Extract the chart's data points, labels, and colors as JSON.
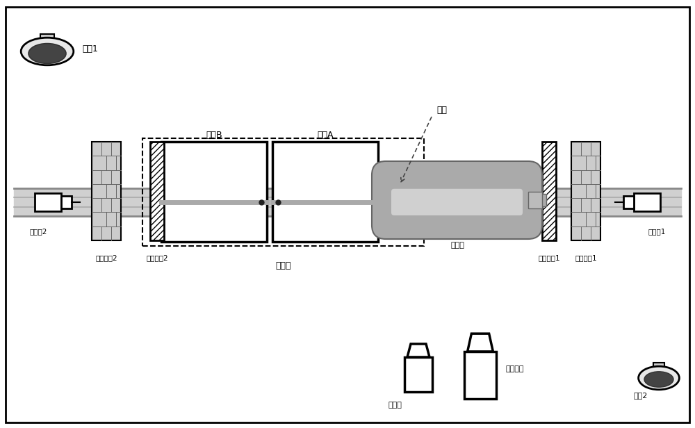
{
  "bg_color": "#ffffff",
  "border_color": "#000000",
  "labels": {
    "monitor1": "监控1",
    "monitor2": "监控2",
    "camera1": "摄像机1",
    "camera2": "摄像机2",
    "tank_A": "油池A",
    "tank_B": "油池B",
    "hydrogen": "储氢瓶",
    "brake2": "刹车挡板2",
    "brake1": "刹车挡板1",
    "safe2": "安全挡板2",
    "safe1": "安全挡板1",
    "fire_panel": "灭火板",
    "guide": "导轨",
    "camera_label": "摄像机",
    "high_speed": "高速相机"
  }
}
